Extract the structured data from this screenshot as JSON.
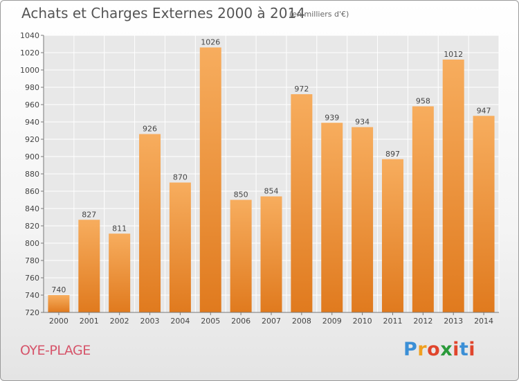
{
  "header": {
    "title": "Achats et Charges Externes 2000 à 2014",
    "subtitle": "(en milliers d'€)"
  },
  "footer": {
    "place": "OYE-PLAGE",
    "logo": "Proxiti",
    "logo_colors": [
      "#3b8fd6",
      "#f0a020",
      "#e0452c",
      "#2a9a3a",
      "#e0452c",
      "#3b8fd6"
    ]
  },
  "chart_data": {
    "type": "bar",
    "title": "Achats et Charges Externes 2000 à 2014",
    "subtitle": "(en milliers d'€)",
    "xlabel": "",
    "ylabel": "",
    "categories": [
      "2000",
      "2001",
      "2002",
      "2003",
      "2004",
      "2005",
      "2006",
      "2007",
      "2008",
      "2009",
      "2010",
      "2011",
      "2012",
      "2013",
      "2014"
    ],
    "values": [
      740,
      827,
      811,
      926,
      870,
      1026,
      850,
      854,
      972,
      939,
      934,
      897,
      958,
      1012,
      947
    ],
    "ylim": [
      720,
      1040
    ],
    "yticks": [
      720,
      740,
      760,
      780,
      800,
      820,
      840,
      860,
      880,
      900,
      920,
      940,
      960,
      980,
      1000,
      1020,
      1040
    ],
    "grid": true,
    "bar_color": "#f08c30",
    "bar_color_light": "#f7ad5e",
    "bar_color_dark": "#e07a1e"
  }
}
